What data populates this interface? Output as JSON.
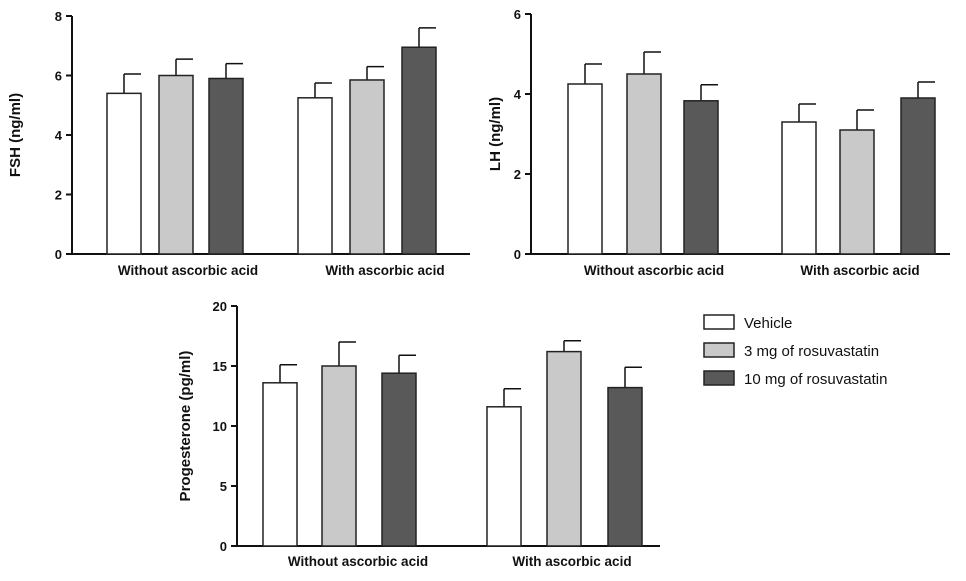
{
  "legend": [
    {
      "label": "Vehicle",
      "color": "#ffffff"
    },
    {
      "label": "3 mg of rosuvastatin",
      "color": "#c9c9c9"
    },
    {
      "label": "10 mg of rosuvastatin",
      "color": "#595959"
    }
  ],
  "chart_data": [
    {
      "type": "bar",
      "ylabel": "FSH (ng/ml)",
      "ylim": [
        0,
        8
      ],
      "yticks": [
        "0",
        "2",
        "4",
        "6",
        "8"
      ],
      "categories": [
        "Without ascorbic acid",
        "With ascorbic acid"
      ],
      "series": [
        {
          "name": "Vehicle",
          "values": [
            5.4,
            5.25
          ],
          "errors": [
            0.65,
            0.5
          ]
        },
        {
          "name": "3 mg of rosuvastatin",
          "values": [
            6.0,
            5.85
          ],
          "errors": [
            0.55,
            0.45
          ]
        },
        {
          "name": "10 mg of rosuvastatin",
          "values": [
            5.9,
            6.95
          ],
          "errors": [
            0.5,
            0.65
          ]
        }
      ]
    },
    {
      "type": "bar",
      "ylabel": "LH (ng/ml)",
      "ylim": [
        0,
        6
      ],
      "yticks": [
        "0",
        "2",
        "4",
        "6"
      ],
      "categories": [
        "Without ascorbic acid",
        "With ascorbic acid"
      ],
      "series": [
        {
          "name": "Vehicle",
          "values": [
            4.25,
            3.3
          ],
          "errors": [
            0.5,
            0.45
          ]
        },
        {
          "name": "3 mg of rosuvastatin",
          "values": [
            4.5,
            3.1
          ],
          "errors": [
            0.55,
            0.5
          ]
        },
        {
          "name": "10 mg of rosuvastatin",
          "values": [
            3.83,
            3.9
          ],
          "errors": [
            0.4,
            0.4
          ]
        }
      ]
    },
    {
      "type": "bar",
      "ylabel": "Progesterone (pg/ml)",
      "ylim": [
        0,
        20
      ],
      "yticks": [
        "0",
        "5",
        "10",
        "15",
        "20"
      ],
      "categories": [
        "Without ascorbic acid",
        "With ascorbic acid"
      ],
      "series": [
        {
          "name": "Vehicle",
          "values": [
            13.6,
            11.6
          ],
          "errors": [
            1.5,
            1.5
          ]
        },
        {
          "name": "3 mg of rosuvastatin",
          "values": [
            15.0,
            16.2
          ],
          "errors": [
            2.0,
            0.9
          ]
        },
        {
          "name": "10 mg of rosuvastatin",
          "values": [
            14.4,
            13.2
          ],
          "errors": [
            1.5,
            1.7
          ]
        }
      ]
    }
  ]
}
